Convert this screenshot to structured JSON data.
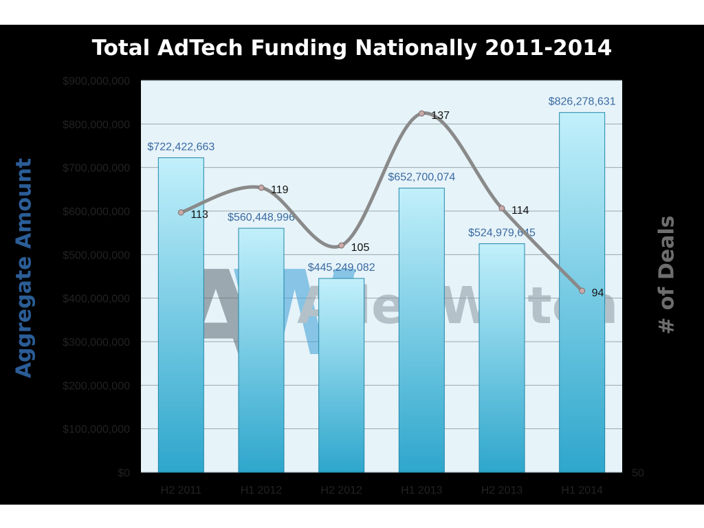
{
  "chart_data": {
    "type": "bar",
    "title": "Total AdTech Funding Nationally 2011-2014",
    "xlabel": "",
    "ylabel": "Aggregate Amount",
    "y2label": "# of Deals",
    "categories": [
      "H2 2011",
      "H1 2012",
      "H2 2012",
      "H1 2013",
      "H2 2013",
      "H1 2014"
    ],
    "series": [
      {
        "name": "Aggregate Amount",
        "type": "bar",
        "axis": "left",
        "values": [
          722422663,
          560448996,
          445249082,
          652700074,
          524979645,
          826278631
        ],
        "labels": [
          "$722,422,663",
          "$560,448,996",
          "$445,249,082",
          "$652,700,074",
          "$524,979,645",
          "$826,278,631"
        ]
      },
      {
        "name": "# of Deals",
        "type": "line",
        "axis": "right",
        "smooth": true,
        "values": [
          113,
          119,
          105,
          137,
          114,
          94
        ],
        "labels": [
          "113",
          "119",
          "105",
          "137",
          "114",
          "94"
        ]
      }
    ],
    "ylim": [
      0,
      900000000
    ],
    "yticks": [
      "$0",
      "$100,000,000",
      "$200,000,000",
      "$300,000,000",
      "$400,000,000",
      "$500,000,000",
      "$600,000,000",
      "$700,000,000",
      "$800,000,000",
      "$900,000,000"
    ],
    "y2lim": [
      50,
      145
    ],
    "y2ticks": [
      "50"
    ],
    "grid": true,
    "watermark": "AlleyWatch",
    "colors": {
      "plot_bg": "#e6f3f9",
      "grid": "#9aa8ae",
      "bar_top": "#c2f0fb",
      "bar_bottom": "#2ea6cc",
      "line": "#8a8a8a",
      "bar_label": "#3a6aa0",
      "axis_text": "#222222",
      "title": "#ffffff"
    }
  }
}
